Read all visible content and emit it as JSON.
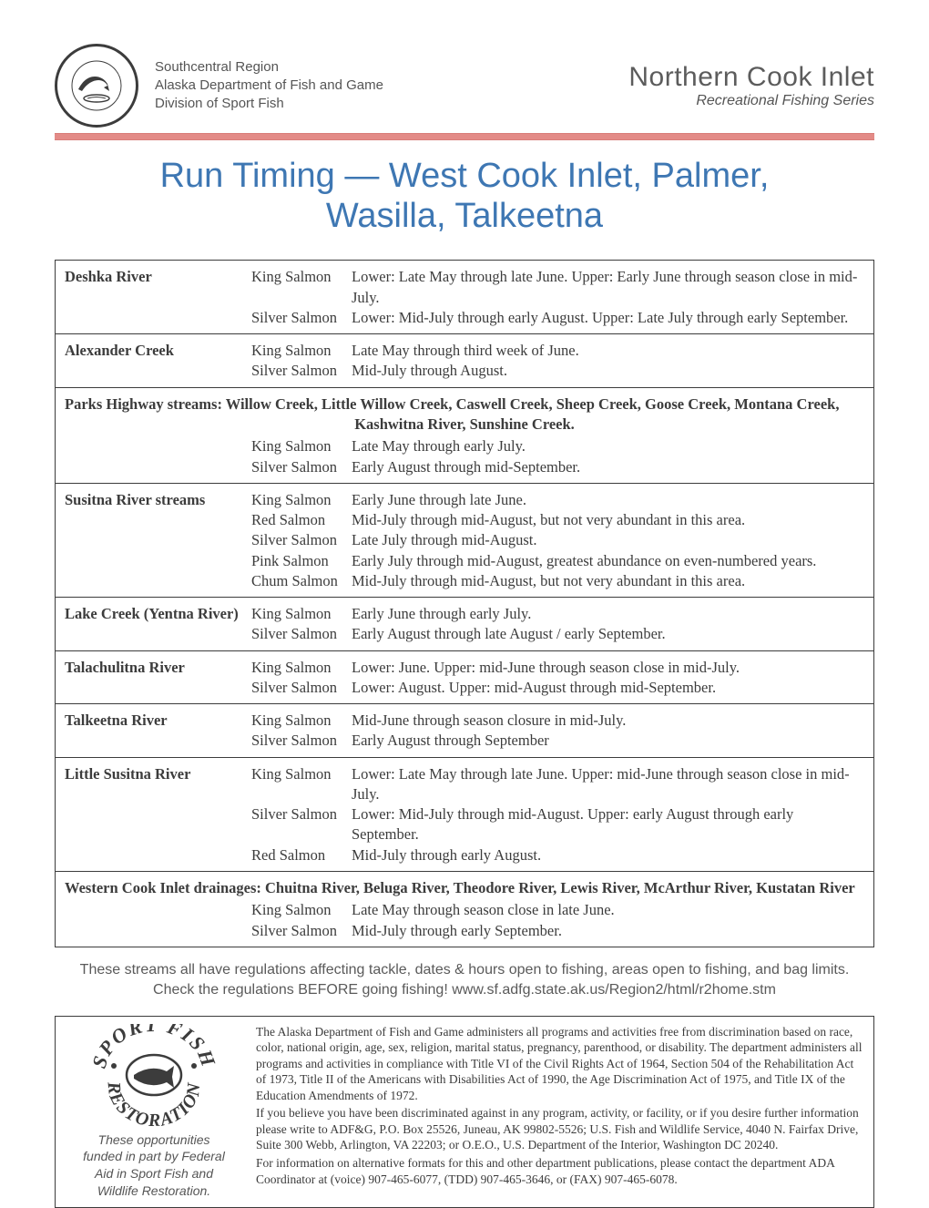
{
  "header": {
    "dept_line1": "Southcentral Region",
    "dept_line2": "Alaska Department of Fish and Game",
    "dept_line3": "Division of Sport Fish",
    "series_title": "Northern Cook Inlet",
    "series_sub": "Recreational Fishing Series"
  },
  "colors": {
    "accent_red": "#e38b87",
    "title_blue": "#3e77b3",
    "text_gray": "#3c3c3c"
  },
  "page_title_l1": "Run Timing — West Cook Inlet, Palmer,",
  "page_title_l2": "Wasilla, Talkeetna",
  "sections": [
    {
      "location": "Deshka River",
      "rows": [
        {
          "species": "King Salmon",
          "timing": "Lower: Late May through late June. Upper: Early June through season close in mid-July."
        },
        {
          "species": "Silver Salmon",
          "timing": "Lower: Mid-July through early August. Upper: Late July through early September."
        }
      ]
    },
    {
      "location": "Alexander Creek",
      "rows": [
        {
          "species": "King Salmon",
          "timing": "Late May through third week of June."
        },
        {
          "species": "Silver Salmon",
          "timing": "Mid-July through August."
        }
      ]
    },
    {
      "note_line1": "Parks Highway streams: Willow Creek, Little Willow Creek, Caswell Creek, Sheep Creek, Goose Creek, Montana Creek,",
      "note_line2": "Kashwitna River, Sunshine Creek.",
      "rows": [
        {
          "species": "King Salmon",
          "timing": "Late May through early July."
        },
        {
          "species": "Silver Salmon",
          "timing": "Early August through mid-September."
        }
      ]
    },
    {
      "location": "Susitna River streams",
      "rows": [
        {
          "species": "King Salmon",
          "timing": "Early June through late June."
        },
        {
          "species": "Red Salmon",
          "timing": "Mid-July through mid-August, but not very abundant in this area."
        },
        {
          "species": "Silver Salmon",
          "timing": "Late July through mid-August."
        },
        {
          "species": "Pink Salmon",
          "timing": "Early July through mid-August, greatest abundance on even-numbered years."
        },
        {
          "species": "Chum Salmon",
          "timing": "Mid-July through mid-August, but not very abundant in this area."
        }
      ]
    },
    {
      "location": "Lake Creek (Yentna River)",
      "rows": [
        {
          "species": "King Salmon",
          "timing": "Early June through early July."
        },
        {
          "species": "Silver Salmon",
          "timing": "Early August through late August / early September."
        }
      ]
    },
    {
      "location": "Talachulitna River",
      "rows": [
        {
          "species": "King Salmon",
          "timing": "Lower: June. Upper: mid-June through season close in mid-July."
        },
        {
          "species": "Silver Salmon",
          "timing": "Lower: August. Upper: mid-August through mid-September."
        }
      ]
    },
    {
      "location": "Talkeetna River",
      "rows": [
        {
          "species": "King Salmon",
          "timing": "Mid-June through season closure in mid-July."
        },
        {
          "species": "Silver Salmon",
          "timing": "Early August through September"
        }
      ]
    },
    {
      "location": "Little Susitna River",
      "rows": [
        {
          "species": "King Salmon",
          "timing": "Lower: Late May through late June. Upper: mid-June through season close in mid-July."
        },
        {
          "species": "Silver Salmon",
          "timing": "Lower: Mid-July through mid-August. Upper: early August through early September."
        },
        {
          "species": "Red Salmon",
          "timing": "Mid-July through early August."
        }
      ]
    },
    {
      "note_line1": "Western Cook Inlet drainages:  Chuitna River, Beluga River, Theodore River, Lewis River, McArthur River, Kustatan River",
      "note_centered": false,
      "rows": [
        {
          "species": "King Salmon",
          "timing": "Late May through season close in late June."
        },
        {
          "species": "Silver Salmon",
          "timing": "Mid-July through early September."
        }
      ]
    }
  ],
  "reg_line1": "These streams all have regulations affecting tackle, dates & hours open to fishing, areas open to fishing, and bag limits.",
  "reg_line2": "Check the regulations BEFORE going fishing! www.sf.adfg.state.ak.us/Region2/html/r2home.stm",
  "footer": {
    "funding_l1": "These opportunities",
    "funding_l2": "funded in part by Federal",
    "funding_l3": "Aid in Sport Fish and",
    "funding_l4": "Wildlife Restoration.",
    "p1": "The Alaska Department of Fish and Game administers all programs and activities free from discrimination based on race, color, national origin, age, sex, religion, marital status, pregnancy, parenthood, or disability. The department administers all programs and activities in compliance with Title VI of the Civil Rights Act of 1964, Section 504 of the Rehabilitation Act of 1973, Title II of the Americans with Disabilities Act of 1990, the Age Discrimination Act of 1975, and Title IX of the Education Amendments of 1972.",
    "p2": "If you believe you have been discriminated against in any program, activity, or facility, or if you desire further information please write to ADF&G, P.O. Box 25526, Juneau, AK 99802-5526; U.S. Fish and Wildlife Service, 4040 N. Fairfax Drive, Suite 300 Webb, Arlington, VA 22203; or O.E.O., U.S. Department of the Interior, Washington DC 20240.",
    "p3": "For information on alternative formats for this and other department publications, please contact the department ADA Coordinator at (voice) 907-465-6077, (TDD) 907-465-3646, or (FAX) 907-465-6078."
  }
}
